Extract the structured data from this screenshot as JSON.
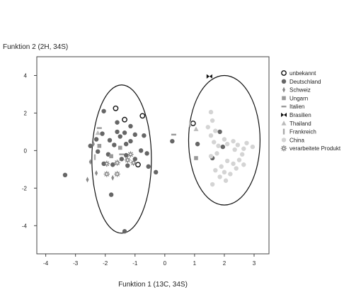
{
  "chart_data": {
    "type": "scatter",
    "title": "",
    "xlabel": "Funktion 1 (13C, 34S)",
    "ylabel": "Funktion 2 (2H, 34S)",
    "xlim": [
      -4.3,
      3.5
    ],
    "ylim": [
      -5.5,
      5.0
    ],
    "xticks": [
      -4,
      -3,
      -2,
      -1,
      0,
      1,
      2,
      3
    ],
    "yticks": [
      -4,
      -2,
      0,
      2,
      4
    ],
    "grid": false,
    "legend_position": "right",
    "series": [
      {
        "name": "unbekannt",
        "marker": "open-circle",
        "color": "#111111",
        "points": [
          [
            -1.65,
            2.25
          ],
          [
            -1.35,
            1.65
          ],
          [
            -0.75,
            1.85
          ],
          [
            -0.9,
            -0.75
          ],
          [
            0.95,
            1.45
          ]
        ]
      },
      {
        "name": "Deutschland",
        "marker": "filled-circle",
        "color": "#666666",
        "points": [
          [
            -3.35,
            -1.3
          ],
          [
            -2.5,
            0.25
          ],
          [
            -2.3,
            0.6
          ],
          [
            -2.1,
            0.9
          ],
          [
            -2.25,
            -0.05
          ],
          [
            -2.05,
            -0.7
          ],
          [
            -1.85,
            0.55
          ],
          [
            -1.7,
            0.3
          ],
          [
            -1.6,
            1.0
          ],
          [
            -1.5,
            0.75
          ],
          [
            -1.35,
            0.95
          ],
          [
            -1.3,
            0.35
          ],
          [
            -1.15,
            0.5
          ],
          [
            -1.0,
            0.85
          ],
          [
            -1.15,
            1.3
          ],
          [
            -1.0,
            -0.45
          ],
          [
            -0.8,
            0.0
          ],
          [
            -0.7,
            0.8
          ],
          [
            -0.6,
            -0.15
          ],
          [
            -0.55,
            -0.85
          ],
          [
            -0.3,
            -1.15
          ],
          [
            -1.75,
            -0.75
          ],
          [
            -1.45,
            -0.45
          ],
          [
            -1.3,
            -0.25
          ],
          [
            -2.05,
            2.1
          ],
          [
            -1.6,
            1.5
          ],
          [
            -1.8,
            -2.35
          ],
          [
            -1.35,
            -4.3
          ],
          [
            -1.9,
            -0.2
          ],
          [
            -1.25,
            -0.8
          ],
          [
            0.25,
            0.5
          ],
          [
            1.85,
            1.0
          ],
          [
            1.6,
            -0.4
          ],
          [
            1.1,
            0.35
          ],
          [
            1.95,
            0.2
          ]
        ]
      },
      {
        "name": "Schweiz",
        "marker": "diamond",
        "color": "#888888",
        "points": [
          [
            -2.6,
            -1.55
          ],
          [
            -2.3,
            -1.2
          ],
          [
            -2.4,
            0.35
          ],
          [
            -1.75,
            -1.45
          ],
          [
            -2.5,
            -0.6
          ]
        ]
      },
      {
        "name": "Ungarn",
        "marker": "square",
        "color": "#999999",
        "points": [
          [
            -2.2,
            0.25
          ],
          [
            -1.8,
            -0.3
          ],
          [
            1.05,
            -0.4
          ],
          [
            -1.5,
            0.15
          ]
        ]
      },
      {
        "name": "Italien",
        "marker": "dash",
        "color": "#999999",
        "points": [
          [
            -2.2,
            1.2
          ],
          [
            0.3,
            0.85
          ],
          [
            -1.45,
            -0.2
          ]
        ]
      },
      {
        "name": "Brasilien",
        "marker": "bowtie",
        "color": "#111111",
        "points": [
          [
            1.5,
            3.95
          ]
        ]
      },
      {
        "name": "Thailand",
        "marker": "triangle",
        "color": "#bbbbbb",
        "points": [
          [
            1.05,
            1.15
          ],
          [
            -2.25,
            0.95
          ]
        ]
      },
      {
        "name": "Frankreich",
        "marker": "bar",
        "color": "#aaaaaa",
        "points": [
          [
            0.85,
            1.4
          ],
          [
            -2.35,
            -0.35
          ]
        ]
      },
      {
        "name": "China",
        "marker": "filled-circle",
        "color": "#d4d4d4",
        "points": [
          [
            1.55,
            2.05
          ],
          [
            1.6,
            1.6
          ],
          [
            1.45,
            1.25
          ],
          [
            1.7,
            1.05
          ],
          [
            1.55,
            0.8
          ],
          [
            1.65,
            0.45
          ],
          [
            1.8,
            0.25
          ],
          [
            2.0,
            0.6
          ],
          [
            2.1,
            0.35
          ],
          [
            2.3,
            0.5
          ],
          [
            2.45,
            0.3
          ],
          [
            2.65,
            0.1
          ],
          [
            2.75,
            0.4
          ],
          [
            2.95,
            0.2
          ],
          [
            2.6,
            -0.2
          ],
          [
            2.5,
            -0.5
          ],
          [
            2.3,
            -0.7
          ],
          [
            2.1,
            -0.55
          ],
          [
            1.9,
            -0.85
          ],
          [
            1.7,
            -1.05
          ],
          [
            1.85,
            -1.4
          ],
          [
            2.0,
            -1.15
          ],
          [
            2.2,
            -1.25
          ],
          [
            2.4,
            -0.95
          ],
          [
            2.65,
            -0.75
          ],
          [
            1.55,
            -0.3
          ],
          [
            1.75,
            -0.15
          ],
          [
            1.6,
            -1.8
          ],
          [
            2.05,
            -1.6
          ],
          [
            2.35,
            0.05
          ]
        ]
      },
      {
        "name": "verarbeitete Produkt",
        "marker": "star",
        "color": "#777777",
        "points": [
          [
            -1.95,
            -0.7
          ],
          [
            -1.95,
            -1.25
          ],
          [
            -1.6,
            -0.65
          ],
          [
            -1.6,
            -1.25
          ],
          [
            -1.25,
            -0.5
          ],
          [
            -1.05,
            -0.65
          ],
          [
            -1.15,
            -0.2
          ]
        ]
      }
    ],
    "ellipses": [
      {
        "cx": -1.45,
        "cy": -0.45,
        "rx": 1.0,
        "ry": 3.95
      },
      {
        "cx": 2.0,
        "cy": 0.55,
        "rx": 1.2,
        "ry": 3.45
      }
    ]
  }
}
